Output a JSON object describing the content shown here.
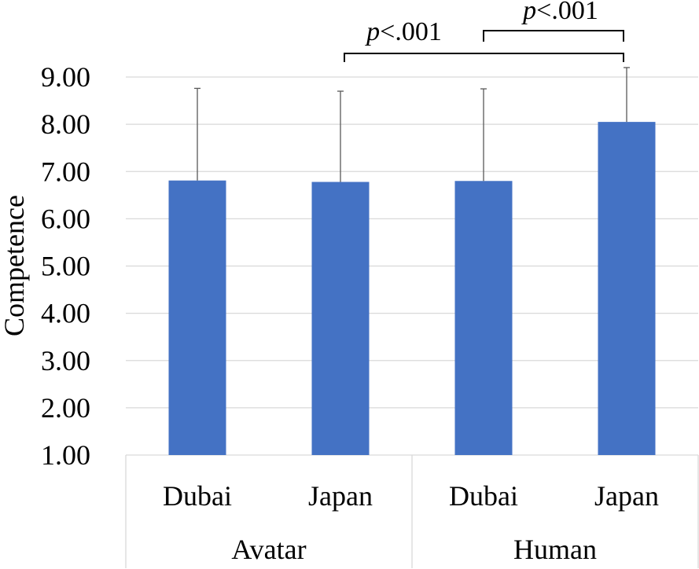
{
  "chart_data": {
    "type": "bar",
    "ylabel": "Competence",
    "ylim": [
      1,
      9
    ],
    "yticks": [
      "1.00",
      "2.00",
      "3.00",
      "4.00",
      "5.00",
      "6.00",
      "7.00",
      "8.00",
      "9.00"
    ],
    "grid": true,
    "bars": [
      {
        "group": "Avatar",
        "category": "Dubai",
        "value": 6.81,
        "error_upper": 8.76
      },
      {
        "group": "Avatar",
        "category": "Japan",
        "value": 6.78,
        "error_upper": 8.7
      },
      {
        "group": "Human",
        "category": "Dubai",
        "value": 6.8,
        "error_upper": 8.75
      },
      {
        "group": "Human",
        "category": "Japan",
        "value": 8.05,
        "error_upper": 9.2
      }
    ],
    "groups": [
      "Avatar",
      "Human"
    ],
    "color": "#4472c4",
    "annotations": [
      {
        "p_symbol": "p",
        "text": "<.001",
        "between": [
          "Avatar Japan",
          "Human Japan"
        ]
      },
      {
        "p_symbol": "p",
        "text": "<.001",
        "between": [
          "Human Dubai",
          "Human Japan"
        ]
      }
    ]
  }
}
